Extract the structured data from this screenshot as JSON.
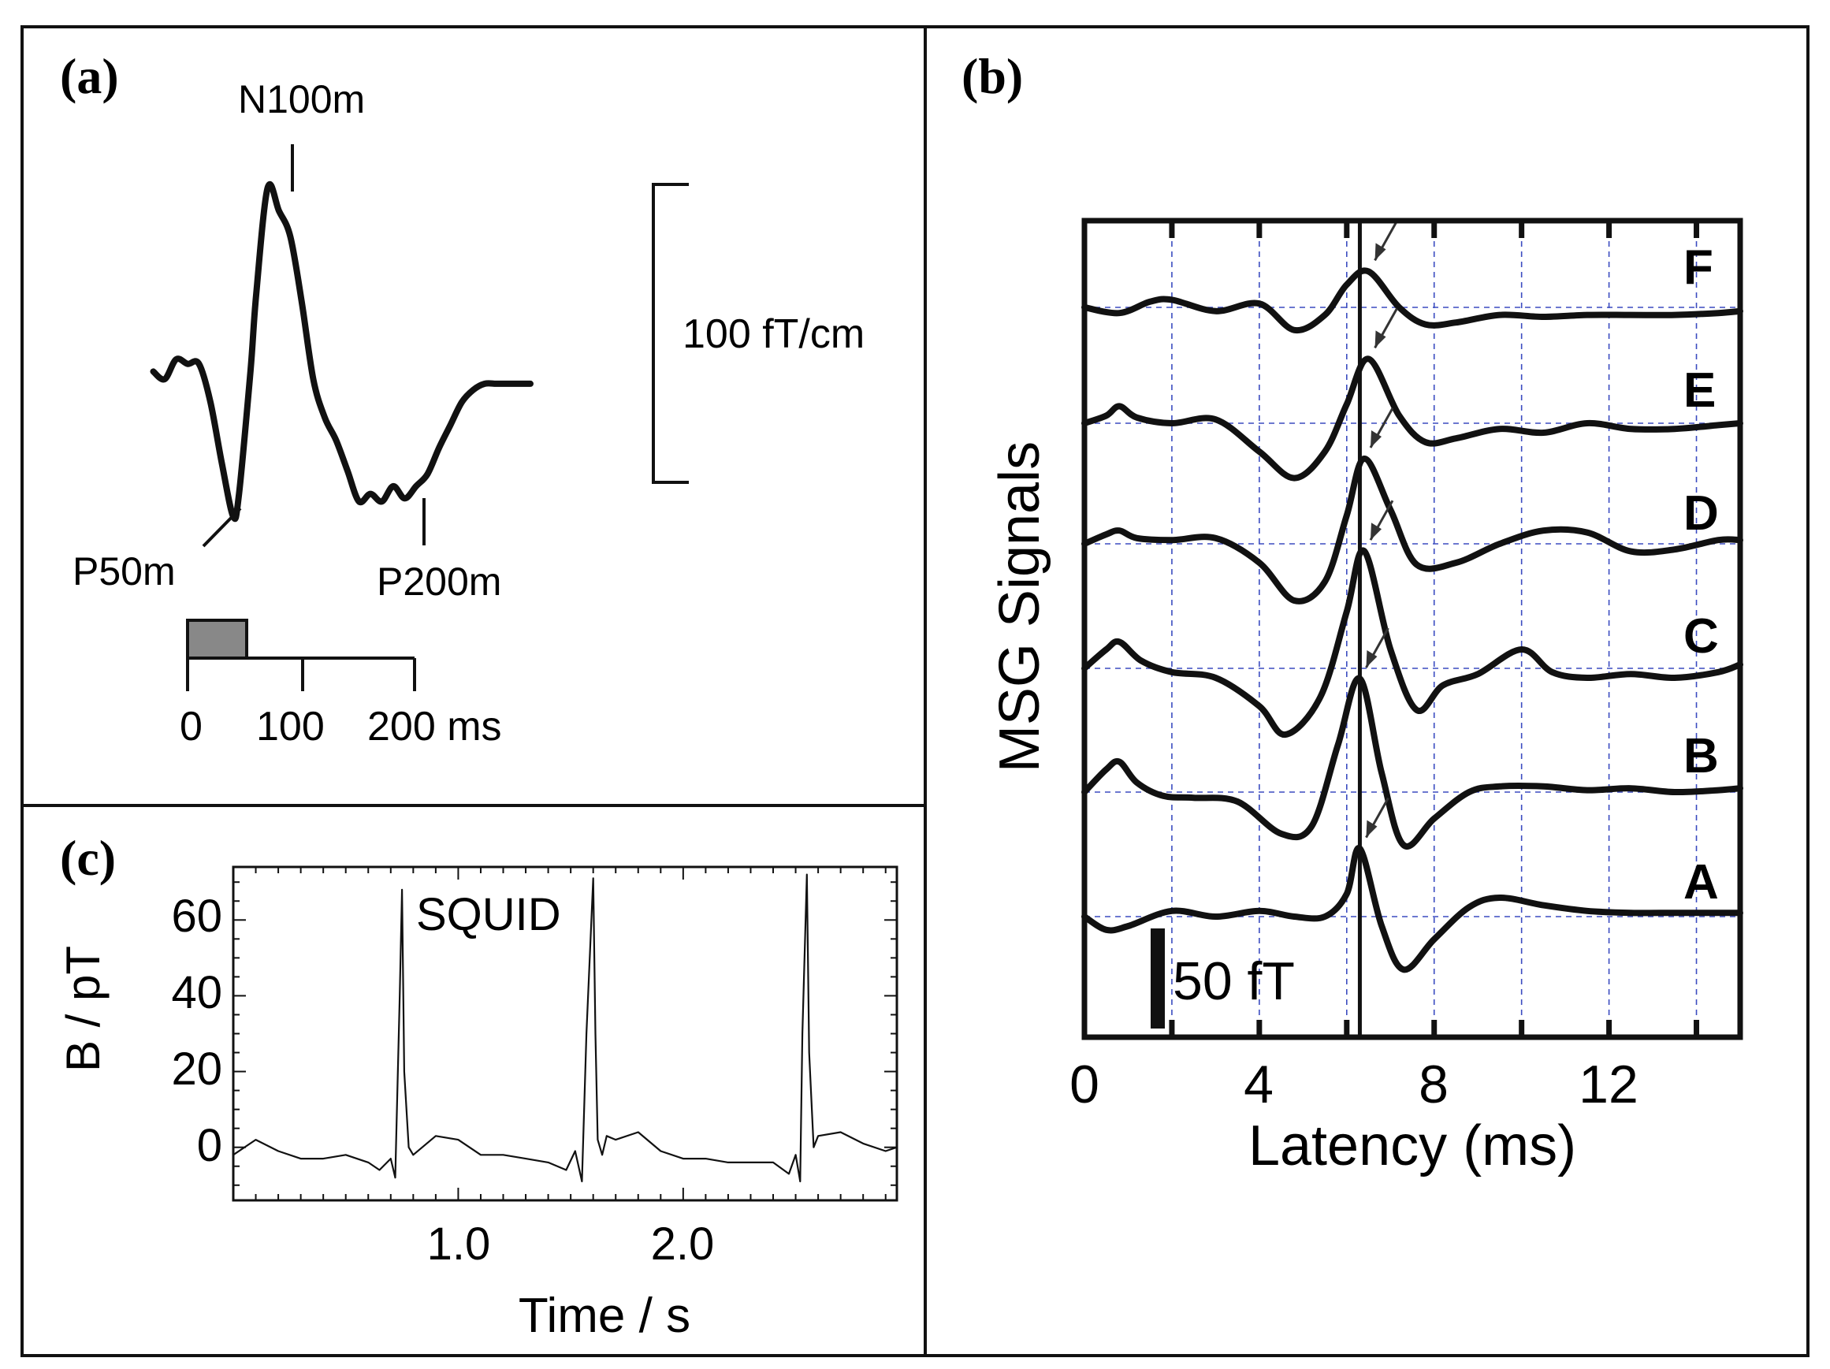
{
  "panel_a": {
    "label": "(a)",
    "peak_labels": {
      "n100m": "N100m",
      "p50m": "P50m",
      "p200m": "P200m"
    },
    "scale_label": "100 fT/cm",
    "time_ticks": [
      "0",
      "100",
      "200 ms"
    ]
  },
  "panel_b": {
    "label": "(b)",
    "ylabel": "MSG Signals",
    "xlabel": "Latency (ms)",
    "scale_label": "50 fT",
    "xticks": [
      "0",
      "4",
      "8",
      "12"
    ],
    "trace_labels": [
      "F",
      "E",
      "D",
      "C",
      "B",
      "A"
    ]
  },
  "panel_c": {
    "label": "(c)",
    "ylabel": "B / pT",
    "xlabel": "Time / s",
    "annotation": "SQUID",
    "yticks": [
      "0",
      "20",
      "40",
      "60"
    ],
    "xticks": [
      "1.0",
      "2.0"
    ]
  },
  "chart_data": [
    {
      "type": "line",
      "panel": "a",
      "title": "",
      "xlabel": "",
      "ylabel": "",
      "x_ms": [
        -30,
        -20,
        -10,
        0,
        10,
        20,
        30,
        40,
        45,
        55,
        60,
        70,
        80,
        90,
        100,
        110,
        120,
        130,
        140,
        150,
        160,
        170,
        180,
        190,
        200,
        210,
        220,
        230,
        240,
        250,
        260,
        270,
        280,
        290,
        300
      ],
      "y_fT_per_cm": [
        -10,
        -15,
        -2,
        -5,
        -5,
        -30,
        -70,
        -105,
        -90,
        -10,
        40,
        110,
        95,
        78,
        35,
        -15,
        -40,
        -55,
        -75,
        -95,
        -90,
        -95,
        -85,
        -93,
        -85,
        -77,
        -60,
        -45,
        -30,
        -22,
        -18,
        -18,
        -18,
        -18,
        -18
      ],
      "peaks": [
        {
          "name": "N100m",
          "x_ms": 70,
          "y_fT_per_cm": 110
        },
        {
          "name": "P50m",
          "x_ms": 40,
          "y_fT_per_cm": -105
        },
        {
          "name": "P200m",
          "x_ms": 150,
          "y_fT_per_cm": -95
        }
      ],
      "stimulus_ms": [
        0,
        50
      ],
      "scale_bar_fT_per_cm": 100
    },
    {
      "type": "line",
      "panel": "b",
      "title": "",
      "xlabel": "Latency (ms)",
      "ylabel": "MSG Signals",
      "xlim": [
        0,
        15
      ],
      "xticks": [
        0,
        4,
        8,
        12
      ],
      "grid": true,
      "vertical_marker_ms": 6.3,
      "scale_bar_fT": 50,
      "series": [
        {
          "name": "F",
          "x": [
            0,
            0.8,
            1.5,
            2,
            3,
            4,
            4.8,
            5.5,
            6,
            6.5,
            7.2,
            7.8,
            8.5,
            9.5,
            10.5,
            11.5,
            12.5,
            13.5,
            14.5,
            15
          ],
          "values": [
            0,
            -3,
            3,
            4,
            -2,
            2,
            -12,
            -4,
            12,
            19,
            0,
            -9,
            -8,
            -4,
            -5,
            -4,
            -4,
            -4,
            -3,
            -2
          ]
        },
        {
          "name": "E",
          "x": [
            0,
            0.5,
            0.8,
            1.2,
            2,
            3,
            4,
            4.8,
            5.5,
            6,
            6.5,
            7.2,
            7.8,
            8.5,
            9.5,
            10.5,
            11.5,
            12.5,
            13.5,
            14.5,
            15
          ],
          "values": [
            0,
            4,
            9,
            3,
            0,
            2,
            -15,
            -29,
            -15,
            10,
            34,
            4,
            -10,
            -8,
            -3,
            -5,
            0,
            -3,
            -3,
            -1,
            0
          ]
        },
        {
          "name": "D",
          "x": [
            0,
            0.5,
            0.8,
            1.2,
            2,
            3,
            4,
            4.8,
            5.5,
            6,
            6.4,
            7,
            7.6,
            8.5,
            9.5,
            10.5,
            11.5,
            12.5,
            13.5,
            14.5,
            15
          ],
          "values": [
            0,
            5,
            7,
            3,
            2,
            3,
            -10,
            -30,
            -20,
            15,
            45,
            18,
            -11,
            -10,
            0,
            7,
            6,
            -4,
            -3,
            2,
            2
          ]
        },
        {
          "name": "C",
          "x": [
            0,
            0.5,
            0.8,
            1.3,
            2,
            3,
            4,
            4.6,
            5.4,
            6,
            6.4,
            7,
            7.6,
            8.2,
            9,
            10,
            10.7,
            11.5,
            12.5,
            13.5,
            14.5,
            15
          ],
          "values": [
            0,
            10,
            14,
            4,
            -2,
            -5,
            -20,
            -35,
            -15,
            30,
            62,
            10,
            -22,
            -9,
            -3,
            10,
            -2,
            -5,
            -3,
            -5,
            -2,
            2
          ]
        },
        {
          "name": "B",
          "x": [
            0,
            0.5,
            0.8,
            1.2,
            1.8,
            2.5,
            3.5,
            4.5,
            5.2,
            5.8,
            6.3,
            6.8,
            7.3,
            8,
            8.8,
            9.5,
            10.5,
            11.5,
            12.5,
            13.5,
            14.5,
            15
          ],
          "values": [
            0,
            12,
            16,
            5,
            -2,
            -3,
            -5,
            -22,
            -18,
            25,
            60,
            10,
            -28,
            -14,
            0,
            3,
            3,
            1,
            2,
            0,
            1,
            2
          ]
        },
        {
          "name": "A",
          "x": [
            0,
            0.5,
            1,
            2,
            3,
            4,
            4.8,
            5.5,
            6,
            6.3,
            6.8,
            7.3,
            8,
            8.8,
            9.5,
            10.5,
            11.5,
            12.5,
            13.5,
            14.5,
            15
          ],
          "values": [
            0,
            -7,
            -5,
            3,
            0,
            3,
            0,
            0,
            12,
            36,
            -5,
            -28,
            -12,
            5,
            10,
            6,
            3,
            2,
            2,
            2,
            2
          ]
        }
      ]
    },
    {
      "type": "line",
      "panel": "c",
      "title": "",
      "xlabel": "Time / s",
      "ylabel": "B / pT",
      "xlim": [
        0,
        2.95
      ],
      "ylim": [
        -14,
        74
      ],
      "xticks": [
        1.0,
        2.0
      ],
      "yticks": [
        0,
        20,
        40,
        60
      ],
      "series": [
        {
          "name": "SQUID",
          "x": [
            0,
            0.1,
            0.2,
            0.3,
            0.4,
            0.5,
            0.6,
            0.65,
            0.7,
            0.72,
            0.74,
            0.75,
            0.76,
            0.78,
            0.8,
            0.9,
            1.0,
            1.1,
            1.2,
            1.3,
            1.4,
            1.48,
            1.52,
            1.55,
            1.57,
            1.6,
            1.61,
            1.62,
            1.64,
            1.66,
            1.7,
            1.8,
            1.9,
            2.0,
            2.1,
            2.2,
            2.3,
            2.4,
            2.47,
            2.5,
            2.52,
            2.53,
            2.55,
            2.56,
            2.58,
            2.6,
            2.7,
            2.8,
            2.9,
            2.95
          ],
          "values": [
            -2,
            2,
            -1,
            -3,
            -3,
            -2,
            -4,
            -6,
            -3,
            -8,
            40,
            68,
            20,
            0,
            -2,
            3,
            2,
            -2,
            -2,
            -3,
            -4,
            -6,
            -1,
            -9,
            30,
            71,
            30,
            2,
            -2,
            3,
            2,
            4,
            -1,
            -3,
            -3,
            -4,
            -4,
            -4,
            -7,
            -2,
            -9,
            30,
            72,
            25,
            0,
            3,
            4,
            1,
            -1,
            0
          ]
        }
      ]
    }
  ]
}
